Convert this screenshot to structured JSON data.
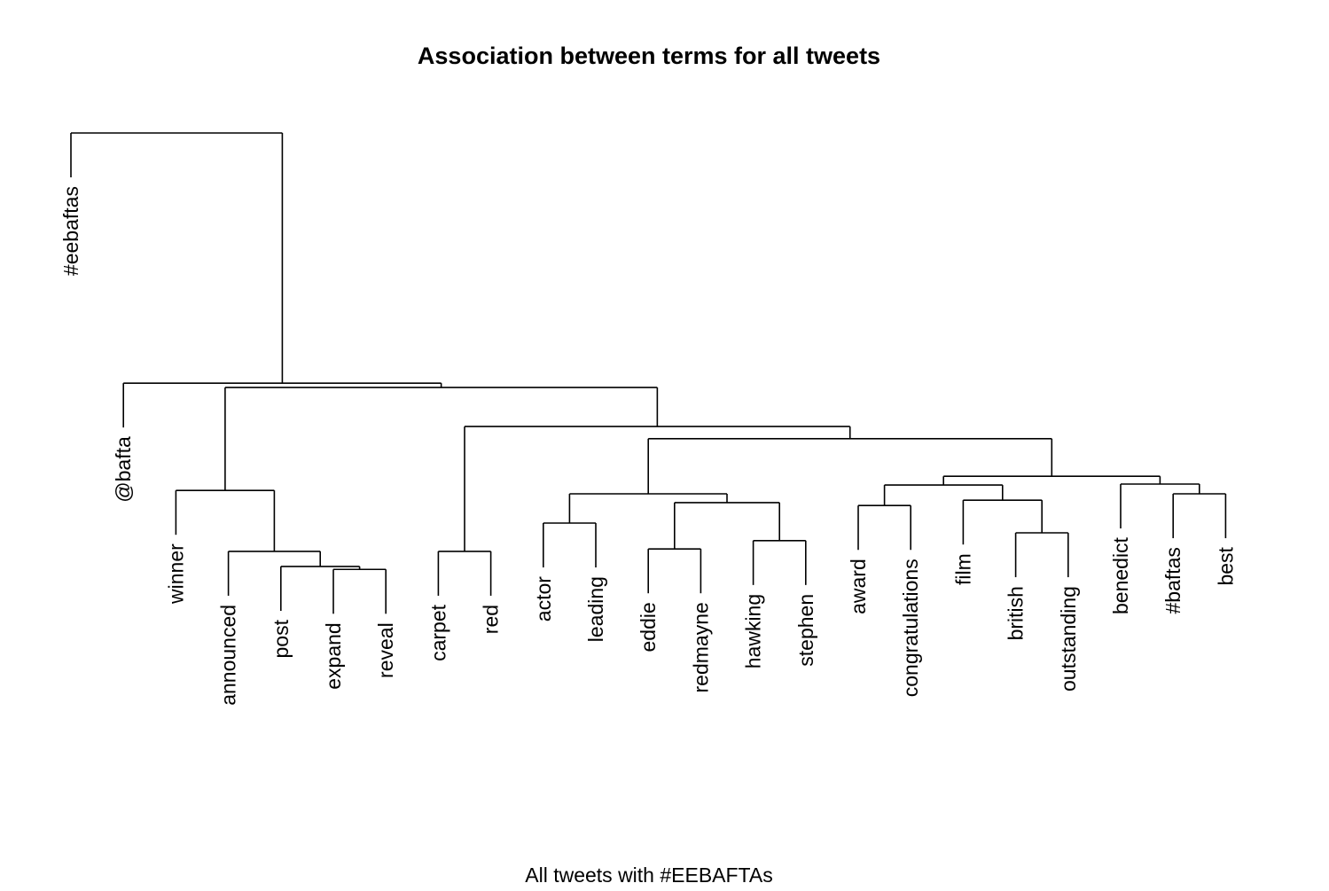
{
  "chart_data": {
    "type": "dendrogram",
    "title": "Association between terms for all tweets",
    "xlabel": "All tweets with #EEBAFTAs",
    "ylabel": "",
    "height_units": "relative (root = 100)",
    "labels": [
      "#eebaftas",
      "@bafta",
      "winner",
      "announced",
      "post",
      "expand",
      "reveal",
      "carpet",
      "red",
      "actor",
      "leading",
      "eddie",
      "redmayne",
      "hawking",
      "stephen",
      "award",
      "congratulations",
      "film",
      "british",
      "outstanding",
      "benedict",
      "#baftas",
      "best"
    ],
    "tree": {
      "h": 100,
      "c": [
        0,
        {
          "h": 48.7,
          "c": [
            1,
            {
              "h": 47.8,
              "c": [
                {
                  "h": 26.7,
                  "c": [
                    2,
                    {
                      "h": 14.2,
                      "c": [
                        3,
                        {
                          "h": 11.1,
                          "c": [
                            4,
                            {
                              "h": 10.5,
                              "c": [
                                5,
                                6
                              ]
                            }
                          ]
                        }
                      ]
                    }
                  ]
                },
                {
                  "h": 39.8,
                  "c": [
                    {
                      "h": 14.2,
                      "c": [
                        7,
                        8
                      ]
                    },
                    {
                      "h": 37.3,
                      "c": [
                        {
                          "h": 26.0,
                          "c": [
                            {
                              "h": 20.0,
                              "c": [
                                9,
                                10
                              ]
                            },
                            {
                              "h": 24.2,
                              "c": [
                                {
                                  "h": 14.7,
                                  "c": [
                                    11,
                                    12
                                  ]
                                },
                                {
                                  "h": 16.4,
                                  "c": [
                                    13,
                                    14
                                  ]
                                }
                              ]
                            }
                          ]
                        },
                        {
                          "h": 29.6,
                          "c": [
                            {
                              "h": 27.8,
                              "c": [
                                {
                                  "h": 23.6,
                                  "c": [
                                    15,
                                    16
                                  ]
                                },
                                {
                                  "h": 24.7,
                                  "c": [
                                    17,
                                    {
                                      "h": 18.0,
                                      "c": [
                                        18,
                                        19
                                      ]
                                    }
                                  ]
                                }
                              ]
                            },
                            {
                              "h": 28.0,
                              "c": [
                                20,
                                {
                                  "h": 26.0,
                                  "c": [
                                    21,
                                    22
                                  ]
                                }
                              ]
                            }
                          ]
                        }
                      ]
                    }
                  ]
                }
              ]
            }
          ]
        }
      ]
    },
    "leaf_hang": 9.1
  }
}
